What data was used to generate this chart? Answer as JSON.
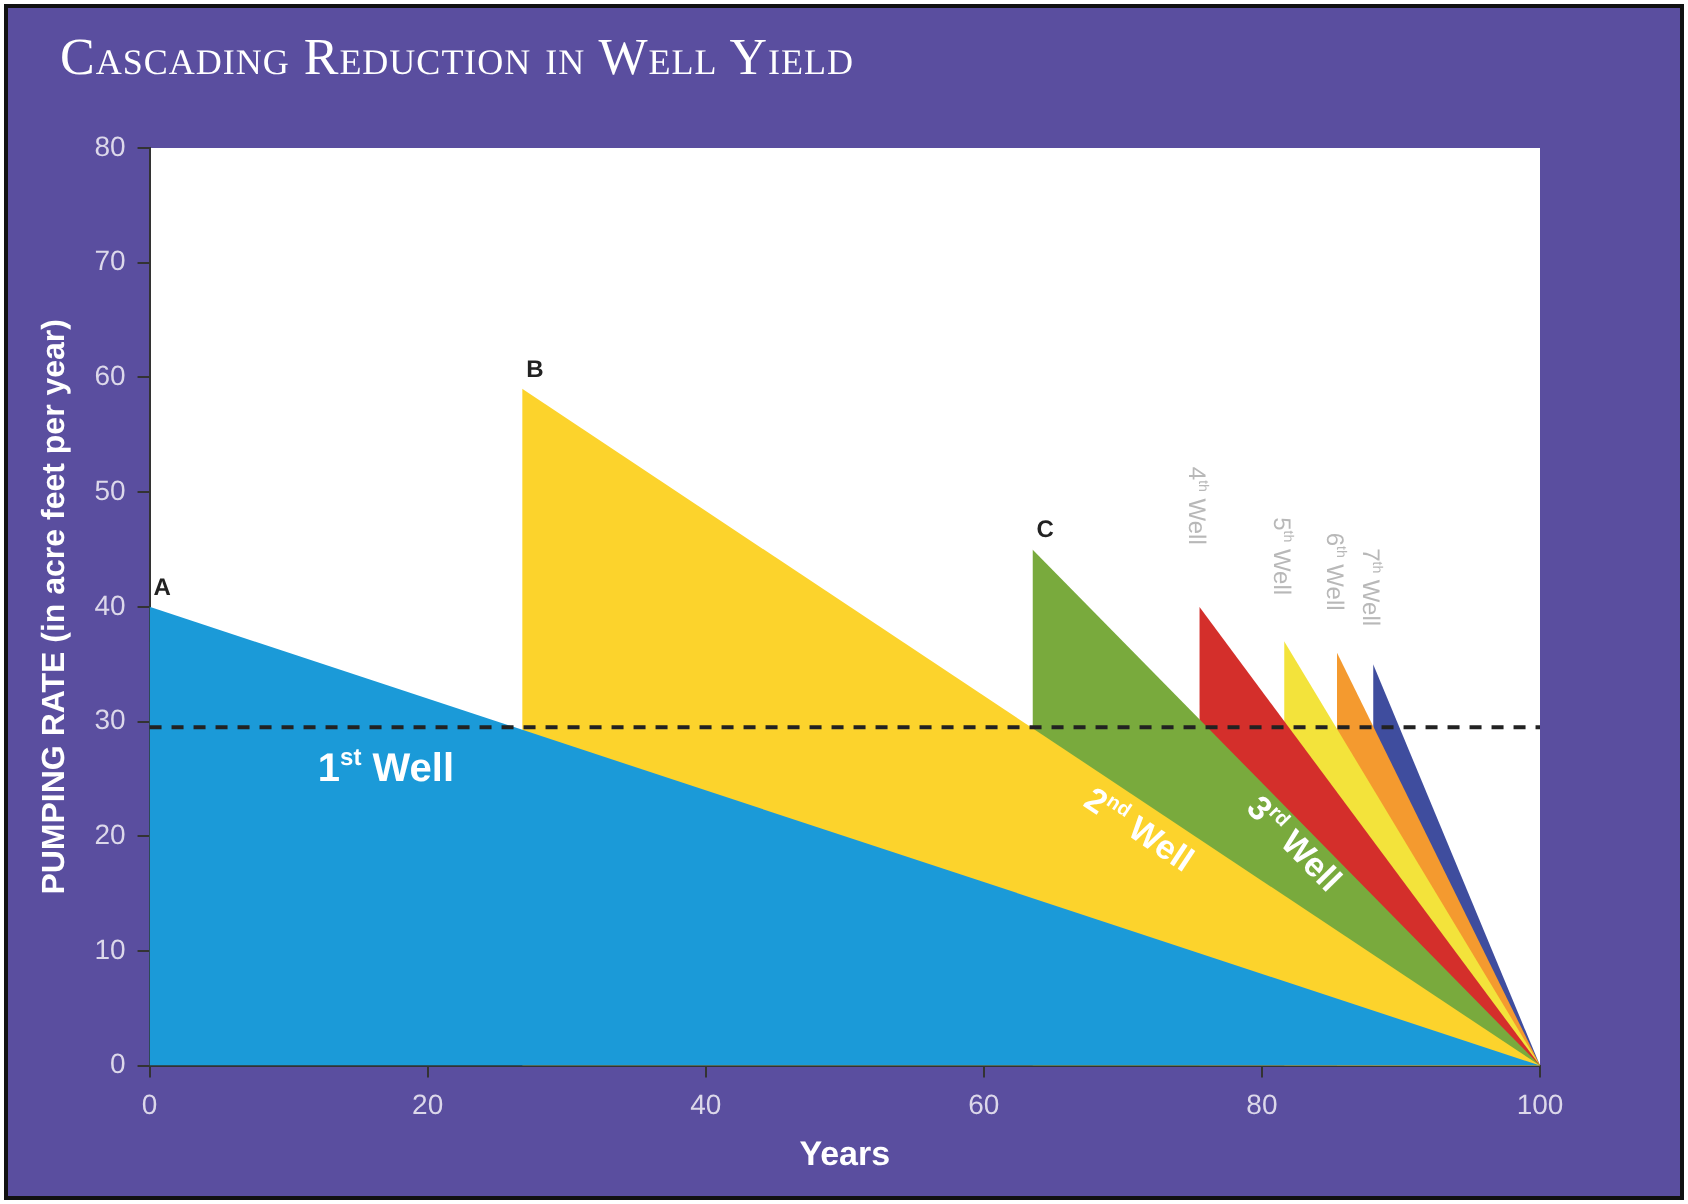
{
  "chart_data": {
    "type": "area",
    "title": "Cascading Reduction in Well Yield",
    "xlabel": "Years",
    "ylabel": "PUMPING RATE (in acre feet per year)",
    "xlim": [
      0,
      100
    ],
    "xticks": [
      0,
      20,
      40,
      60,
      80,
      100
    ],
    "ylim": [
      0,
      80
    ],
    "yticks": [
      0,
      10,
      20,
      30,
      40,
      50,
      60,
      70,
      80
    ],
    "series": [
      {
        "name": "1$^{st}$ Well",
        "color": "#1b9ad8",
        "x": [
          0,
          100
        ],
        "values": [
          40,
          0
        ]
      },
      {
        "name": "2$^{nd}$ Well",
        "color": "#fcd32c",
        "x": [
          26.8,
          26.8,
          100
        ],
        "values": [
          0,
          59,
          0
        ]
      },
      {
        "name": "3$^{rd}$ Well",
        "color": "#79aa3d",
        "x": [
          63.5,
          63.5,
          100
        ],
        "values": [
          0,
          45,
          0
        ]
      },
      {
        "name": "4$^{th}$ Well",
        "color": "#d42f2b",
        "x": [
          75.5,
          75.5,
          100
        ],
        "values": [
          0,
          40,
          0
        ]
      },
      {
        "name": "5$^{th}$ Well",
        "color": "#f3e33b",
        "x": [
          81.6,
          81.6,
          100
        ],
        "values": [
          0,
          37,
          0
        ]
      },
      {
        "name": "6$^{th}$ Well",
        "color": "#f49a2f",
        "x": [
          85.4,
          85.4,
          100
        ],
        "values": [
          0,
          36,
          0
        ]
      },
      {
        "name": "7$^{th}$ Well",
        "color": "#3f4d9e",
        "x": [
          88,
          88,
          100
        ],
        "values": [
          0,
          35,
          0
        ]
      }
    ],
    "ref_lines": [
      {
        "axis": "y",
        "value": 29.5,
        "line_style": "dashed",
        "color": "#222222"
      }
    ],
    "annotations": [
      {
        "text": "A",
        "x": 0,
        "y": 40
      },
      {
        "text": "B",
        "x": 26.8,
        "y": 59
      },
      {
        "text": "C",
        "x": 63.5,
        "y": 45
      }
    ],
    "legend": false,
    "grid": false
  }
}
